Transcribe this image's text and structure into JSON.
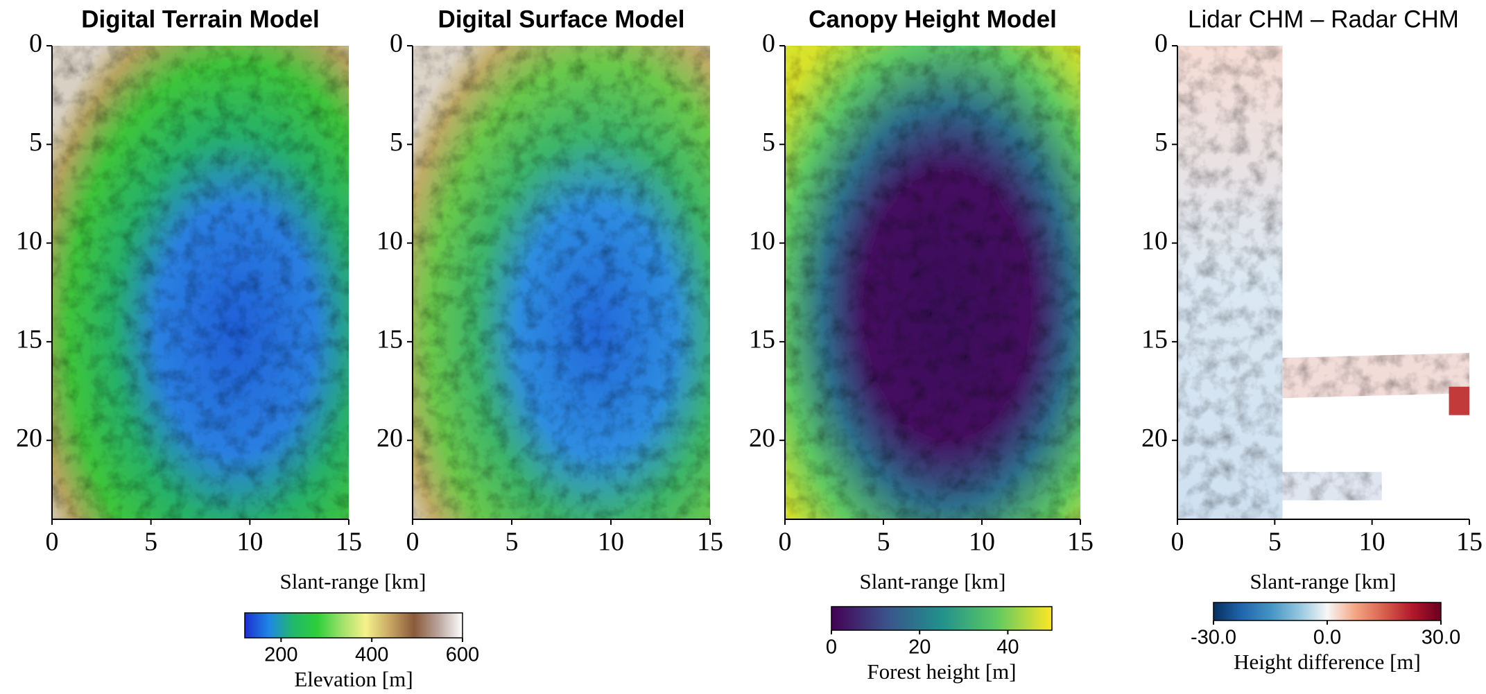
{
  "chart_data": [
    {
      "type": "image",
      "title": "Digital Terrain Model",
      "xlim": [
        0,
        15
      ],
      "xticks": [
        0,
        5,
        10,
        15
      ],
      "ylim": [
        24,
        0
      ],
      "yticks": [
        0,
        5,
        10,
        15,
        20
      ],
      "xlabel": "Slant-range [km]",
      "colorbar": {
        "label": "Elevation [m]",
        "lim": [
          120,
          600
        ],
        "ticks": [
          200,
          400,
          600
        ],
        "colors": [
          "#1c2fd0",
          "#1f86e6",
          "#22b86a",
          "#2ccf3a",
          "#9ee06a",
          "#f5f28c",
          "#c7a764",
          "#8a5a3a",
          "#b9a49c",
          "#ffffff"
        ]
      }
    },
    {
      "type": "image",
      "title": "Digital Surface Model",
      "xlim": [
        0,
        15
      ],
      "xticks": [
        0,
        5,
        10,
        15
      ],
      "ylim": [
        24,
        0
      ],
      "yticks": [
        0,
        5,
        10,
        15,
        20
      ]
    },
    {
      "type": "image",
      "title": "Canopy Height Model",
      "xlim": [
        0,
        15
      ],
      "xticks": [
        0,
        5,
        10,
        15
      ],
      "ylim": [
        24,
        0
      ],
      "yticks": [
        0,
        5,
        10,
        15,
        20
      ],
      "xlabel": "Slant-range [km]",
      "colorbar": {
        "label": "Forest height [m]",
        "lim": [
          0,
          50
        ],
        "ticks": [
          0,
          20,
          40
        ],
        "colors": [
          "#440154",
          "#3b528b",
          "#21918c",
          "#5ec962",
          "#fde725"
        ]
      }
    },
    {
      "type": "image",
      "title": "Lidar CHM – Radar CHM",
      "xlim": [
        0,
        15
      ],
      "xticks": [
        0,
        5,
        10,
        15
      ],
      "ylim": [
        24,
        0
      ],
      "yticks": [
        0,
        5,
        10,
        15,
        20
      ],
      "xlabel": "Slant-range [km]",
      "colorbar": {
        "label": "Height difference [m]",
        "lim": [
          -30,
          30
        ],
        "ticks": [
          {
            "value": -30,
            "label": "-30.0"
          },
          {
            "value": 0,
            "label": "0.0"
          },
          {
            "value": 30,
            "label": "30.0"
          }
        ],
        "colors": [
          "#053061",
          "#2166ac",
          "#4393c3",
          "#92c5de",
          "#f7f7f7",
          "#f4a582",
          "#d6604d",
          "#b2182b",
          "#67001f"
        ]
      }
    }
  ]
}
